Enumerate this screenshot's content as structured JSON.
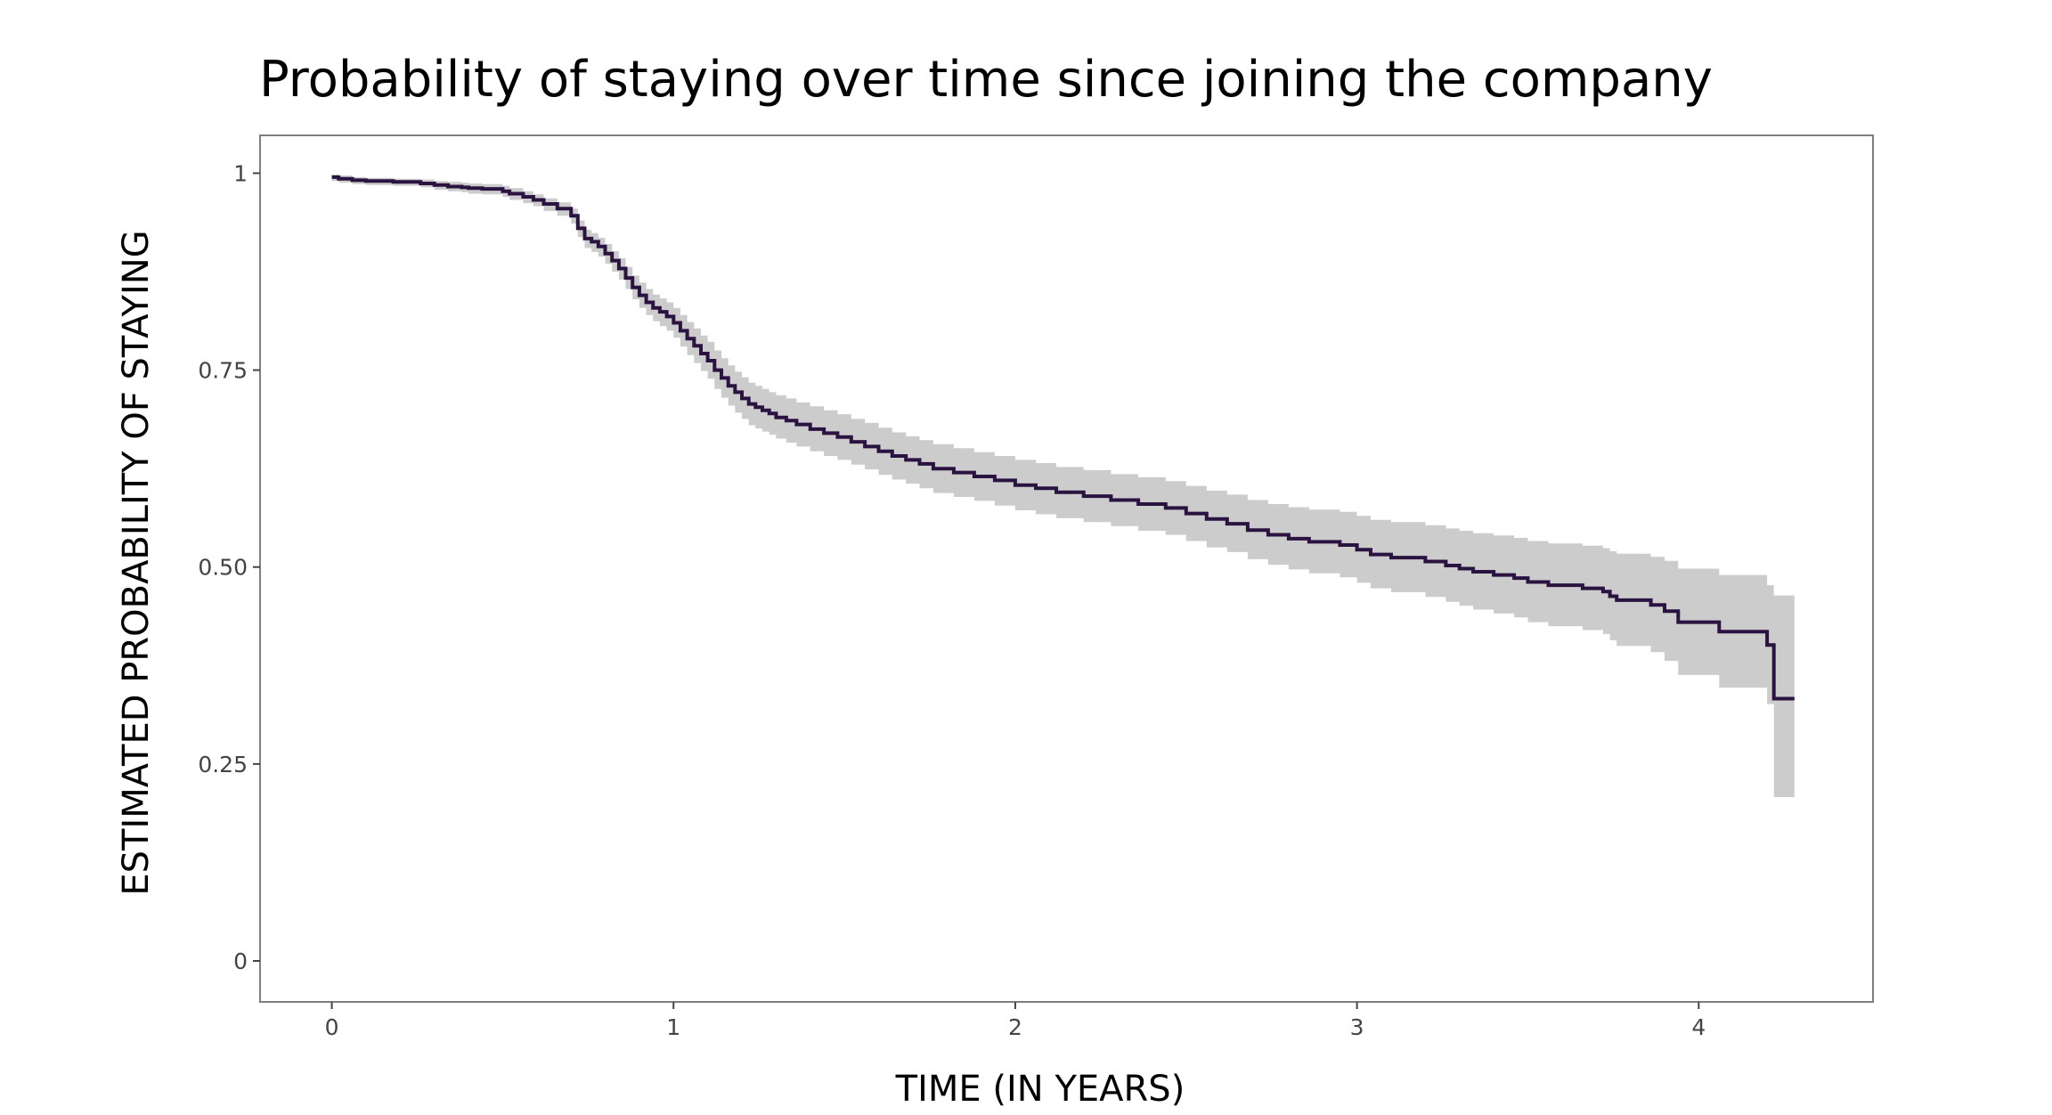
{
  "chart_data": {
    "type": "line",
    "title": "Probability of staying over time since joining the company",
    "xlabel": "TIME (IN YEARS)",
    "ylabel": "ESTIMATED PROBABILITY OF STAYING",
    "xlim": [
      -0.21,
      4.51
    ],
    "ylim": [
      -0.052,
      1.048
    ],
    "x_ticks": [
      0,
      1,
      2,
      3,
      4
    ],
    "x_tick_labels": [
      "0",
      "1",
      "2",
      "3",
      "4"
    ],
    "y_ticks": [
      0,
      0.25,
      0.5,
      0.75,
      1
    ],
    "y_tick_labels": [
      "0",
      "0.25",
      "0.50",
      "0.75",
      "1"
    ],
    "grid": false,
    "line_style": "step",
    "colors": {
      "line": "#2a1340",
      "band": "#cccccc",
      "frame": "#7f7f7f",
      "tick": "#444444"
    },
    "series": [
      {
        "x": [
          0.0,
          0.02,
          0.06,
          0.1,
          0.18,
          0.26,
          0.3,
          0.34,
          0.38,
          0.4,
          0.44,
          0.5,
          0.52,
          0.56,
          0.59,
          0.62,
          0.66,
          0.7,
          0.72,
          0.74,
          0.76,
          0.78,
          0.8,
          0.82,
          0.84,
          0.86,
          0.88,
          0.9,
          0.92,
          0.94,
          0.96,
          0.98,
          1.0,
          1.02,
          1.04,
          1.06,
          1.08,
          1.1,
          1.12,
          1.14,
          1.16,
          1.18,
          1.2,
          1.22,
          1.24,
          1.26,
          1.28,
          1.3,
          1.33,
          1.36,
          1.4,
          1.44,
          1.48,
          1.52,
          1.56,
          1.6,
          1.64,
          1.68,
          1.72,
          1.76,
          1.82,
          1.88,
          1.94,
          2.0,
          2.06,
          2.12,
          2.2,
          2.28,
          2.36,
          2.44,
          2.5,
          2.56,
          2.62,
          2.68,
          2.74,
          2.8,
          2.86,
          2.95,
          3.0,
          3.04,
          3.1,
          3.2,
          3.26,
          3.3,
          3.34,
          3.4,
          3.46,
          3.5,
          3.56,
          3.66,
          3.72,
          3.74,
          3.76,
          3.86,
          3.9,
          3.94,
          4.06,
          4.2,
          4.22,
          4.28
        ],
        "y": [
          0.995,
          0.993,
          0.991,
          0.99,
          0.989,
          0.987,
          0.985,
          0.983,
          0.982,
          0.981,
          0.98,
          0.977,
          0.974,
          0.97,
          0.966,
          0.961,
          0.955,
          0.946,
          0.93,
          0.917,
          0.913,
          0.907,
          0.898,
          0.889,
          0.879,
          0.867,
          0.855,
          0.845,
          0.836,
          0.829,
          0.824,
          0.818,
          0.81,
          0.8,
          0.79,
          0.781,
          0.771,
          0.762,
          0.75,
          0.74,
          0.73,
          0.722,
          0.714,
          0.707,
          0.703,
          0.699,
          0.695,
          0.69,
          0.686,
          0.681,
          0.675,
          0.67,
          0.665,
          0.659,
          0.653,
          0.647,
          0.641,
          0.636,
          0.631,
          0.625,
          0.62,
          0.615,
          0.61,
          0.604,
          0.6,
          0.595,
          0.59,
          0.585,
          0.58,
          0.575,
          0.568,
          0.561,
          0.555,
          0.547,
          0.541,
          0.536,
          0.532,
          0.528,
          0.522,
          0.516,
          0.512,
          0.507,
          0.502,
          0.498,
          0.494,
          0.49,
          0.486,
          0.481,
          0.477,
          0.473,
          0.469,
          0.463,
          0.458,
          0.452,
          0.444,
          0.43,
          0.418,
          0.401,
          0.333,
          0.333
        ],
        "ci_upper": [
          0.998,
          0.997,
          0.995,
          0.994,
          0.993,
          0.992,
          0.99,
          0.989,
          0.988,
          0.987,
          0.986,
          0.984,
          0.981,
          0.977,
          0.973,
          0.968,
          0.963,
          0.955,
          0.94,
          0.928,
          0.924,
          0.918,
          0.91,
          0.901,
          0.892,
          0.881,
          0.87,
          0.861,
          0.853,
          0.846,
          0.841,
          0.836,
          0.829,
          0.82,
          0.811,
          0.803,
          0.794,
          0.786,
          0.775,
          0.765,
          0.756,
          0.748,
          0.741,
          0.734,
          0.73,
          0.726,
          0.722,
          0.718,
          0.714,
          0.709,
          0.704,
          0.699,
          0.694,
          0.688,
          0.683,
          0.677,
          0.671,
          0.666,
          0.661,
          0.656,
          0.651,
          0.646,
          0.641,
          0.636,
          0.632,
          0.627,
          0.623,
          0.618,
          0.614,
          0.609,
          0.603,
          0.597,
          0.592,
          0.585,
          0.58,
          0.576,
          0.573,
          0.57,
          0.565,
          0.56,
          0.557,
          0.553,
          0.549,
          0.546,
          0.543,
          0.54,
          0.537,
          0.533,
          0.53,
          0.527,
          0.524,
          0.52,
          0.517,
          0.513,
          0.508,
          0.498,
          0.49,
          0.477,
          0.464,
          0.464
        ],
        "ci_lower": [
          0.99,
          0.988,
          0.986,
          0.985,
          0.984,
          0.982,
          0.979,
          0.977,
          0.976,
          0.974,
          0.973,
          0.97,
          0.966,
          0.962,
          0.958,
          0.952,
          0.946,
          0.936,
          0.919,
          0.905,
          0.9,
          0.894,
          0.885,
          0.875,
          0.865,
          0.853,
          0.84,
          0.829,
          0.82,
          0.812,
          0.806,
          0.8,
          0.791,
          0.78,
          0.769,
          0.759,
          0.749,
          0.739,
          0.726,
          0.715,
          0.705,
          0.696,
          0.688,
          0.68,
          0.676,
          0.672,
          0.668,
          0.663,
          0.658,
          0.653,
          0.647,
          0.641,
          0.636,
          0.63,
          0.624,
          0.617,
          0.611,
          0.606,
          0.6,
          0.594,
          0.589,
          0.584,
          0.578,
          0.572,
          0.567,
          0.562,
          0.557,
          0.552,
          0.546,
          0.541,
          0.533,
          0.525,
          0.519,
          0.51,
          0.503,
          0.497,
          0.492,
          0.487,
          0.48,
          0.473,
          0.468,
          0.462,
          0.456,
          0.451,
          0.446,
          0.441,
          0.436,
          0.43,
          0.425,
          0.42,
          0.415,
          0.407,
          0.4,
          0.392,
          0.381,
          0.363,
          0.347,
          0.326,
          0.208,
          0.208
        ]
      }
    ]
  }
}
